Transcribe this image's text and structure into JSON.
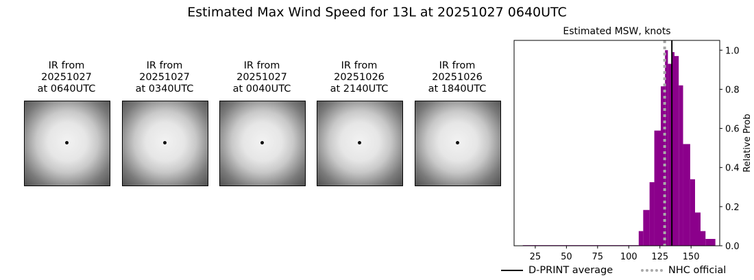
{
  "title": "Estimated Max Wind Speed for 13L at 20251027 0640UTC",
  "thumbnails": [
    {
      "l1": "IR from",
      "l2": "20251027",
      "l3": "at 0640UTC"
    },
    {
      "l1": "IR from",
      "l2": "20251027",
      "l3": "at 0340UTC"
    },
    {
      "l1": "IR from",
      "l2": "20251027",
      "l3": "at 0040UTC"
    },
    {
      "l1": "IR from",
      "l2": "20251026",
      "l3": "at 2140UTC"
    },
    {
      "l1": "IR from",
      "l2": "20251026",
      "l3": "at 1840UTC"
    }
  ],
  "chart_data": {
    "type": "bar",
    "title": "Estimated MSW, knots",
    "ylabel": "Relative Prob",
    "xlim": [
      8,
      173
    ],
    "ylim": [
      0,
      1.05
    ],
    "xticks": [
      25,
      50,
      75,
      100,
      125,
      150
    ],
    "yticks": [
      0.0,
      0.2,
      0.4,
      0.6,
      0.8,
      1.0
    ],
    "bar_color": "#8b008b",
    "bins": [
      {
        "x0": 15,
        "x1": 108,
        "y": 0.003
      },
      {
        "x0": 108,
        "x1": 111.6,
        "y": 0.075
      },
      {
        "x0": 111.6,
        "x1": 116.7,
        "y": 0.183
      },
      {
        "x0": 116.7,
        "x1": 120.5,
        "y": 0.325
      },
      {
        "x0": 120.5,
        "x1": 125.7,
        "y": 0.589
      },
      {
        "x0": 125.7,
        "x1": 129.1,
        "y": 0.815
      },
      {
        "x0": 129.1,
        "x1": 131.4,
        "y": 1.0
      },
      {
        "x0": 131.4,
        "x1": 134.8,
        "y": 0.93
      },
      {
        "x0": 134.8,
        "x1": 136.7,
        "y": 0.99
      },
      {
        "x0": 136.7,
        "x1": 140.1,
        "y": 0.97
      },
      {
        "x0": 140.1,
        "x1": 143.6,
        "y": 0.82
      },
      {
        "x0": 143.6,
        "x1": 149.3,
        "y": 0.52
      },
      {
        "x0": 149.3,
        "x1": 153.2,
        "y": 0.34
      },
      {
        "x0": 153.2,
        "x1": 157.6,
        "y": 0.17
      },
      {
        "x0": 157.6,
        "x1": 161.6,
        "y": 0.075
      },
      {
        "x0": 161.6,
        "x1": 169.5,
        "y": 0.035
      }
    ],
    "dprint_average": 134.6,
    "nhc_official": 128.8,
    "legend": {
      "dprint_label": "D-PRINT average",
      "nhc_label": "NHC official",
      "dprint_color": "#000000",
      "nhc_color": "#a9a9a9",
      "placement": "bottom"
    }
  }
}
